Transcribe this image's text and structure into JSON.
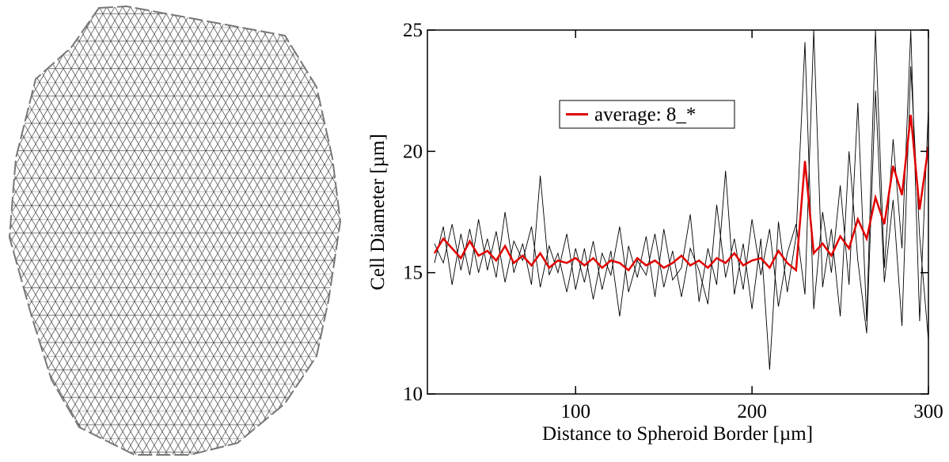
{
  "chart_data": {
    "type": "line",
    "xlabel": "Distance to Spheroid Border [µm]",
    "ylabel": "Cell Diameter [µm]",
    "x": [
      20,
      25,
      30,
      35,
      40,
      45,
      50,
      55,
      60,
      65,
      70,
      75,
      80,
      85,
      90,
      95,
      100,
      105,
      110,
      115,
      120,
      125,
      130,
      135,
      140,
      145,
      150,
      155,
      160,
      165,
      170,
      175,
      180,
      185,
      190,
      195,
      200,
      205,
      210,
      215,
      220,
      225,
      230,
      235,
      240,
      245,
      250,
      255,
      260,
      265,
      270,
      275,
      280,
      285,
      290,
      295,
      300
    ],
    "series": [
      {
        "color": "#000000",
        "values": [
          16.2,
          15.4,
          17.0,
          15.1,
          16.8,
          15.0,
          16.4,
          14.8,
          17.5,
          15.0,
          16.2,
          14.5,
          19.0,
          14.9,
          15.8,
          14.2,
          16.0,
          14.6,
          16.3,
          14.3,
          15.9,
          13.2,
          16.1,
          14.8,
          16.5,
          14.0,
          16.8,
          14.7,
          15.2,
          17.4,
          13.8,
          16.0,
          14.5,
          19.2,
          14.1,
          16.2,
          13.5,
          16.4,
          11.0,
          17.1,
          14.2,
          16.5,
          24.5,
          13.5,
          17.5,
          15.0,
          18.6,
          14.5,
          22.0,
          13.0,
          25.0,
          15.2,
          20.5,
          16.0,
          25.0,
          13.0,
          21.8
        ]
      },
      {
        "color": "#000000",
        "values": [
          15.4,
          16.9,
          14.5,
          16.6,
          14.9,
          17.2,
          15.1,
          16.7,
          14.6,
          16.3,
          15.5,
          16.9,
          14.4,
          16.1,
          15.0,
          16.6,
          14.3,
          16.0,
          13.9,
          15.8,
          14.9,
          16.9,
          14.2,
          15.5,
          14.9,
          16.6,
          14.4,
          15.9,
          14.0,
          16.0,
          15.1,
          13.7,
          17.8,
          14.8,
          16.4,
          14.3,
          17.2,
          14.9,
          16.8,
          13.6,
          15.8,
          17.0,
          14.1,
          25.0,
          14.4,
          16.8,
          13.2,
          20.0,
          15.5,
          12.5,
          22.5,
          14.6,
          18.0,
          12.8,
          23.5,
          16.5,
          12.2
        ]
      },
      {
        "name": "average: 8_*",
        "color": "#e00000",
        "values": [
          15.8,
          16.4,
          16.0,
          15.6,
          16.3,
          15.7,
          15.9,
          15.5,
          16.1,
          15.4,
          15.7,
          15.3,
          15.8,
          15.2,
          15.5,
          15.4,
          15.6,
          15.3,
          15.6,
          15.2,
          15.5,
          15.4,
          15.1,
          15.6,
          15.3,
          15.5,
          15.2,
          15.4,
          15.7,
          15.3,
          15.5,
          15.2,
          15.6,
          15.4,
          15.8,
          15.3,
          15.5,
          15.6,
          15.2,
          15.9,
          15.4,
          15.1,
          19.6,
          15.8,
          16.2,
          15.7,
          16.5,
          16.0,
          17.2,
          16.4,
          18.1,
          17.0,
          19.4,
          18.2,
          21.5,
          17.6,
          20.2
        ]
      }
    ],
    "xlim": [
      16,
      300
    ],
    "xticks": [
      100,
      200,
      300
    ],
    "ylim": [
      10,
      25
    ],
    "yticks": [
      10,
      15,
      20,
      25
    ],
    "grid": false,
    "legend": "upper left"
  }
}
